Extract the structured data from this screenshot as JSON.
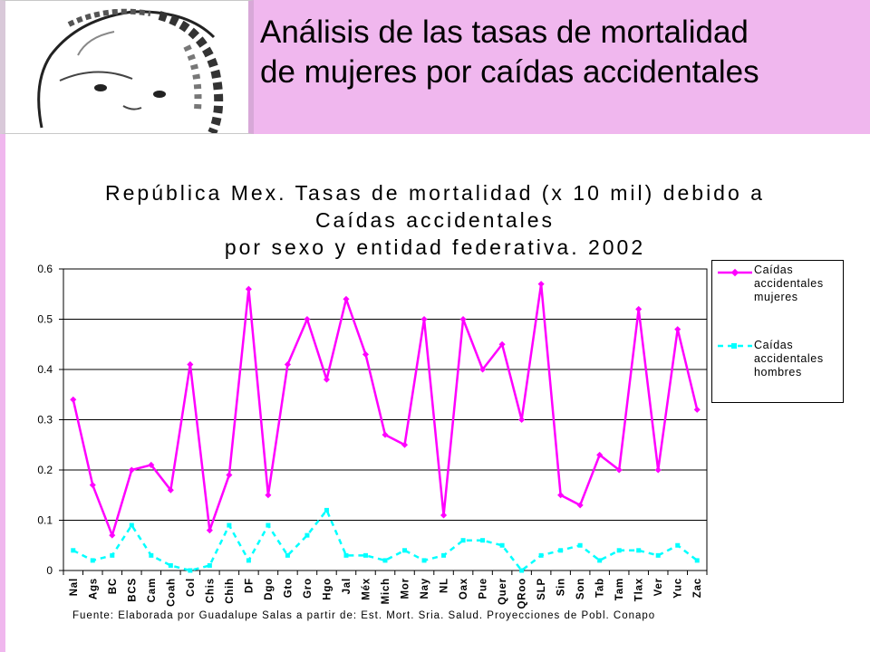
{
  "slide": {
    "title_line1": "Análisis de las tasas de mortalidad",
    "title_line2": "de mujeres por caídas accidentales"
  },
  "colors": {
    "header": "#f0b7ee",
    "women": "#ff00ff",
    "men": "#00ffff"
  },
  "chart_data": {
    "type": "line",
    "title_lines": [
      "República Mex. Tasas de mortalidad (x 10 mil) debido a",
      "Caídas accidentales",
      "por sexo y entidad federativa. 2002"
    ],
    "categories": [
      "Nal",
      "Ags",
      "BC",
      "BCS",
      "Cam",
      "Coah",
      "Col",
      "Chis",
      "Chih",
      "DF",
      "Dgo",
      "Gto",
      "Gro",
      "Hgo",
      "Jal",
      "Méx",
      "Mich",
      "Mor",
      "Nay",
      "NL",
      "Oax",
      "Pue",
      "Quer",
      "QRoo",
      "SLP",
      "Sin",
      "Son",
      "Tab",
      "Tam",
      "Tlax",
      "Ver",
      "Yuc",
      "Zac"
    ],
    "series": [
      {
        "name": "Caídas accidentales mujeres",
        "values": [
          0.34,
          0.17,
          0.07,
          0.2,
          0.21,
          0.16,
          0.41,
          0.08,
          0.19,
          0.56,
          0.15,
          0.41,
          0.5,
          0.38,
          0.54,
          0.43,
          0.27,
          0.25,
          0.5,
          0.11,
          0.5,
          0.4,
          0.45,
          0.3,
          0.57,
          0.15,
          0.13,
          0.23,
          0.2,
          0.52,
          0.2,
          0.48,
          0.32
        ]
      },
      {
        "name": "Caídas accidentales hombres",
        "values": [
          0.04,
          0.02,
          0.03,
          0.09,
          0.03,
          0.01,
          0.0,
          0.01,
          0.09,
          0.02,
          0.09,
          0.03,
          0.07,
          0.12,
          0.03,
          0.03,
          0.02,
          0.04,
          0.02,
          0.03,
          0.06,
          0.06,
          0.05,
          0.0,
          0.03,
          0.04,
          0.05,
          0.02,
          0.04,
          0.04,
          0.03,
          0.05,
          0.02
        ]
      }
    ],
    "yticks": [
      "0",
      "0.1",
      "0.2",
      "0.3",
      "0.4",
      "0.5",
      "0.6"
    ],
    "ylim": [
      0,
      0.6
    ],
    "grid": true,
    "legend_position": "right",
    "source": "Fuente: Elaborada por Guadalupe Salas a partir de: Est. Mort. Sria. Salud. Proyecciones de Pobl. Conapo"
  }
}
